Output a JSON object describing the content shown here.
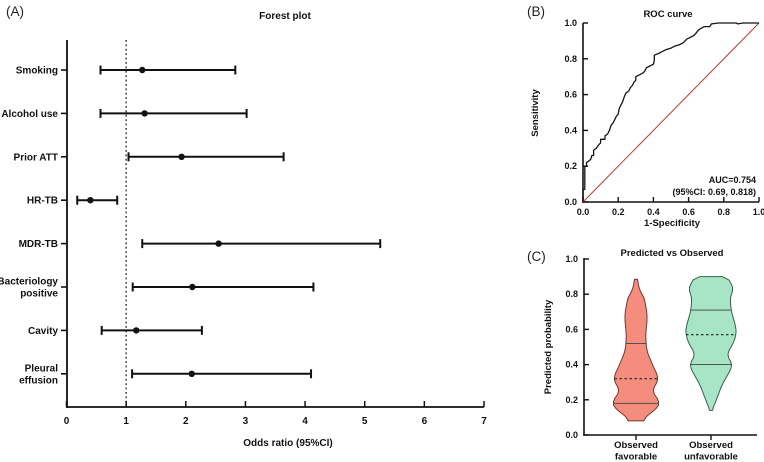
{
  "panels": {
    "a_tag": "(A)",
    "b_tag": "(B)",
    "c_tag": "(C)"
  },
  "chart_data": [
    {
      "id": "forest",
      "type": "scatter",
      "subtype": "forest-plot",
      "title": "Forest plot",
      "xlabel": "Odds ratio (95%CI)",
      "xlim": [
        0,
        7
      ],
      "x_ticks": [
        "0",
        "1",
        "2",
        "3",
        "4",
        "5",
        "6",
        "7"
      ],
      "reference_line_x": 1,
      "grid": false,
      "rows": [
        {
          "label": "Smoking",
          "lines": [
            "Smoking"
          ],
          "or": 1.27,
          "ci_low": 0.57,
          "ci_high": 2.83
        },
        {
          "label": "Alcohol use",
          "lines": [
            "Alcohol use"
          ],
          "or": 1.31,
          "ci_low": 0.57,
          "ci_high": 3.02
        },
        {
          "label": "Prior ATT",
          "lines": [
            "Prior ATT"
          ],
          "or": 1.93,
          "ci_low": 1.04,
          "ci_high": 3.64
        },
        {
          "label": "HR-TB",
          "lines": [
            "HR-TB"
          ],
          "or": 0.4,
          "ci_low": 0.18,
          "ci_high": 0.85
        },
        {
          "label": "MDR-TB",
          "lines": [
            "MDR-TB"
          ],
          "or": 2.55,
          "ci_low": 1.27,
          "ci_high": 5.26
        },
        {
          "label": "Bacteriology positive",
          "lines": [
            "Bacteriology",
            "positive"
          ],
          "or": 2.11,
          "ci_low": 1.11,
          "ci_high": 4.14
        },
        {
          "label": "Cavity",
          "lines": [
            "Cavity"
          ],
          "or": 1.17,
          "ci_low": 0.59,
          "ci_high": 2.27
        },
        {
          "label": "Pleural effusion",
          "lines": [
            "Pleural",
            "effusion"
          ],
          "or": 2.1,
          "ci_low": 1.1,
          "ci_high": 4.1
        }
      ]
    },
    {
      "id": "roc",
      "type": "line",
      "subtype": "roc-curve",
      "title": "ROC curve",
      "xlabel": "1-Specificity",
      "ylabel": "Sensitivity",
      "xlim": [
        0,
        1
      ],
      "ylim": [
        0,
        1
      ],
      "x_ticks": [
        "0.0",
        "0.2",
        "0.4",
        "0.6",
        "0.8",
        "1.0"
      ],
      "y_ticks": [
        "0.0",
        "0.2",
        "0.4",
        "0.6",
        "0.8",
        "1.0"
      ],
      "annotation_line1": "AUC=0.754",
      "annotation_line2": "(95%CI: 0.69, 0.818)",
      "auc": 0.754,
      "auc_ci": [
        0.69,
        0.818
      ],
      "curve_color": "#151515",
      "diagonal_color": "#c0392b",
      "diagonal": true,
      "points": [
        [
          0,
          0
        ],
        [
          0,
          0.07
        ],
        [
          0.01,
          0.07
        ],
        [
          0.01,
          0.2
        ],
        [
          0.02,
          0.2
        ],
        [
          0.02,
          0.22
        ],
        [
          0.035,
          0.23
        ],
        [
          0.045,
          0.24
        ],
        [
          0.05,
          0.26
        ],
        [
          0.06,
          0.26
        ],
        [
          0.06,
          0.29
        ],
        [
          0.075,
          0.3
        ],
        [
          0.09,
          0.32
        ],
        [
          0.1,
          0.33
        ],
        [
          0.1,
          0.35
        ],
        [
          0.125,
          0.35
        ],
        [
          0.125,
          0.37
        ],
        [
          0.14,
          0.38
        ],
        [
          0.15,
          0.4
        ],
        [
          0.16,
          0.43
        ],
        [
          0.17,
          0.44
        ],
        [
          0.18,
          0.46
        ],
        [
          0.19,
          0.48
        ],
        [
          0.2,
          0.49
        ],
        [
          0.205,
          0.52
        ],
        [
          0.215,
          0.54
        ],
        [
          0.225,
          0.56
        ],
        [
          0.235,
          0.59
        ],
        [
          0.245,
          0.61
        ],
        [
          0.26,
          0.62
        ],
        [
          0.27,
          0.64
        ],
        [
          0.28,
          0.65
        ],
        [
          0.29,
          0.67
        ],
        [
          0.3,
          0.68
        ],
        [
          0.3,
          0.7
        ],
        [
          0.32,
          0.71
        ],
        [
          0.34,
          0.72
        ],
        [
          0.35,
          0.73
        ],
        [
          0.36,
          0.75
        ],
        [
          0.38,
          0.76
        ],
        [
          0.4,
          0.77
        ],
        [
          0.405,
          0.79
        ],
        [
          0.405,
          0.82
        ],
        [
          0.43,
          0.83
        ],
        [
          0.45,
          0.84
        ],
        [
          0.47,
          0.85
        ],
        [
          0.5,
          0.86
        ],
        [
          0.52,
          0.87
        ],
        [
          0.55,
          0.88
        ],
        [
          0.57,
          0.89
        ],
        [
          0.59,
          0.91
        ],
        [
          0.61,
          0.92
        ],
        [
          0.63,
          0.93
        ],
        [
          0.64,
          0.94
        ],
        [
          0.655,
          0.96
        ],
        [
          0.67,
          0.97
        ],
        [
          0.69,
          0.98
        ],
        [
          0.72,
          0.98
        ],
        [
          0.73,
          0.995
        ],
        [
          0.77,
          1
        ],
        [
          0.87,
          1
        ],
        [
          0.88,
          0.995
        ],
        [
          0.91,
          1
        ],
        [
          1,
          1
        ]
      ]
    },
    {
      "id": "violin",
      "type": "area",
      "subtype": "violin-plot",
      "title": "Predicted vs Observed",
      "ylabel": "Predicted probability",
      "ylim": [
        0,
        1
      ],
      "y_ticks": [
        "0.0",
        "0.2",
        "0.4",
        "0.6",
        "0.8",
        "1.0"
      ],
      "categories": [
        [
          "Observed",
          "favorable"
        ],
        [
          "Observed",
          "unfavorable"
        ]
      ],
      "violins": [
        {
          "name": "Observed favorable",
          "fill": "#F58D7E",
          "stroke": "#703830",
          "min": 0.08,
          "max": 0.885,
          "q1": 0.18,
          "median": 0.32,
          "q3": 0.52,
          "q1_halfwidth": 22.5,
          "median_halfwidth": 21.5,
          "q3_halfwidth": 10,
          "profile": [
            [
              0.885,
              1.5
            ],
            [
              0.87,
              2
            ],
            [
              0.85,
              2.5
            ],
            [
              0.83,
              3.5
            ],
            [
              0.81,
              5
            ],
            [
              0.79,
              7
            ],
            [
              0.77,
              8.5
            ],
            [
              0.74,
              9.5
            ],
            [
              0.71,
              10.5
            ],
            [
              0.68,
              11
            ],
            [
              0.65,
              11
            ],
            [
              0.62,
              10.5
            ],
            [
              0.59,
              10
            ],
            [
              0.56,
              9.8
            ],
            [
              0.53,
              10
            ],
            [
              0.5,
              10.5
            ],
            [
              0.47,
              11.5
            ],
            [
              0.44,
              13.5
            ],
            [
              0.42,
              15
            ],
            [
              0.4,
              16.5
            ],
            [
              0.38,
              18
            ],
            [
              0.35,
              20.5
            ],
            [
              0.33,
              21.5
            ],
            [
              0.31,
              21.5
            ],
            [
              0.29,
              20
            ],
            [
              0.27,
              18
            ],
            [
              0.25,
              17.5
            ],
            [
              0.23,
              18.5
            ],
            [
              0.21,
              21
            ],
            [
              0.19,
              22.5
            ],
            [
              0.17,
              22.5
            ],
            [
              0.15,
              20
            ],
            [
              0.13,
              16
            ],
            [
              0.11,
              11.5
            ],
            [
              0.09,
              8.5
            ],
            [
              0.08,
              8
            ]
          ]
        },
        {
          "name": "Observed unfavorable",
          "fill": "#A8E5C6",
          "stroke": "#35614b",
          "min": 0.14,
          "max": 0.9,
          "q1": 0.4,
          "median": 0.57,
          "q3": 0.71,
          "q1_halfwidth": 20.5,
          "median_halfwidth": 25,
          "q3_halfwidth": 20,
          "profile": [
            [
              0.9,
              11
            ],
            [
              0.89,
              15
            ],
            [
              0.88,
              18
            ],
            [
              0.86,
              20
            ],
            [
              0.84,
              21.5
            ],
            [
              0.82,
              21.5
            ],
            [
              0.8,
              20.5
            ],
            [
              0.78,
              19.5
            ],
            [
              0.75,
              19.5
            ],
            [
              0.72,
              20
            ],
            [
              0.69,
              21
            ],
            [
              0.66,
              22.5
            ],
            [
              0.63,
              24
            ],
            [
              0.6,
              25
            ],
            [
              0.58,
              25
            ],
            [
              0.55,
              24
            ],
            [
              0.52,
              22
            ],
            [
              0.5,
              20
            ],
            [
              0.48,
              18
            ],
            [
              0.46,
              17
            ],
            [
              0.44,
              17.5
            ],
            [
              0.42,
              19.5
            ],
            [
              0.4,
              20.5
            ],
            [
              0.38,
              20
            ],
            [
              0.36,
              18.5
            ],
            [
              0.33,
              15.5
            ],
            [
              0.3,
              12.5
            ],
            [
              0.27,
              10
            ],
            [
              0.24,
              8
            ],
            [
              0.21,
              6
            ],
            [
              0.18,
              4
            ],
            [
              0.16,
              2.5
            ],
            [
              0.14,
              1.5
            ]
          ]
        }
      ]
    }
  ]
}
